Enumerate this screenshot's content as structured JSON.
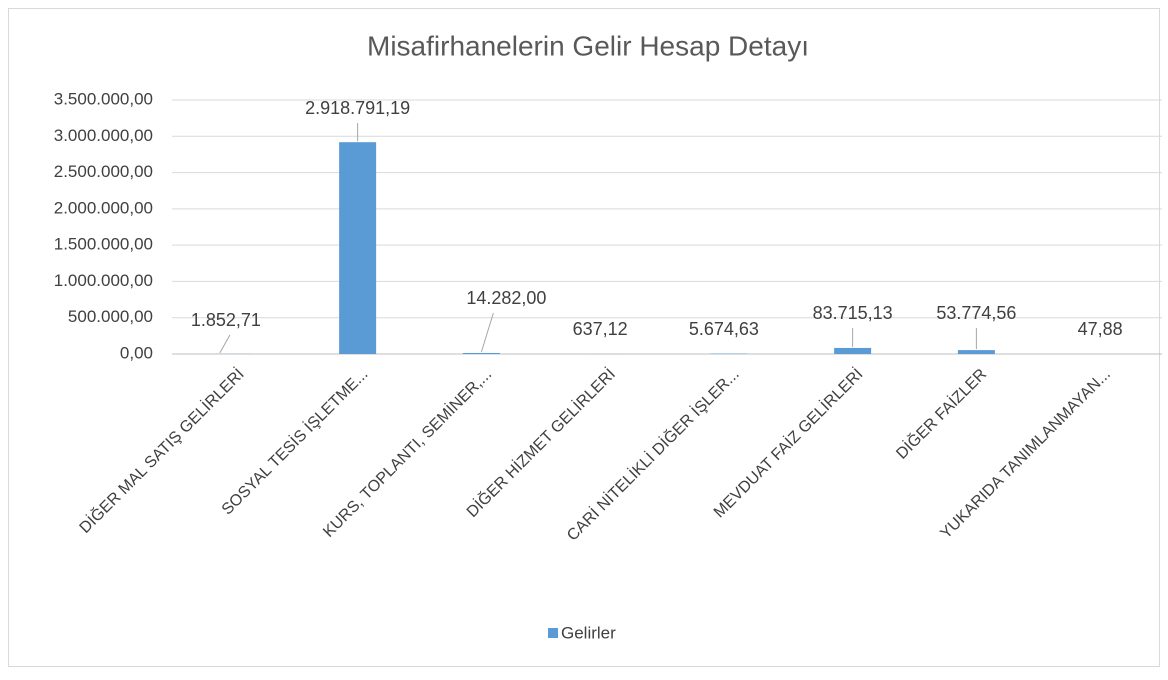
{
  "chart_data": {
    "type": "bar",
    "title": "Misafirhanelerin Gelir Hesap Detayı",
    "categories": [
      "DİĞER MAL SATIŞ GELİRLERİ",
      "SOSYAL TESİS İŞLETME...",
      "KURS, TOPLANTI, SEMİNER,...",
      "DİĞER HİZMET GELİRLERİ",
      "CARİ NİTELİKLİ DİĞER İŞLER...",
      "MEVDUAT FAİZ GELİRLERİ",
      "DİĞER FAİZLER",
      "YUKARIDA TANIMLANMAYAN..."
    ],
    "series": [
      {
        "name": "Gelirler",
        "color": "#5b9bd5",
        "values": [
          1852.71,
          2918791.19,
          14282,
          637.12,
          5674.63,
          83715.13,
          53774.56,
          47.88
        ],
        "value_labels": [
          "1.852,71",
          "2.918.791,19",
          "14.282,00",
          "637,12",
          "5.674,63",
          "83.715,13",
          "53.774,56",
          "47,88"
        ]
      }
    ],
    "ylim": [
      0,
      3500000
    ],
    "yticks": [
      {
        "value": 0,
        "label": "0,00"
      },
      {
        "value": 500000,
        "label": "500.000,00"
      },
      {
        "value": 1000000,
        "label": "1.000.000,00"
      },
      {
        "value": 1500000,
        "label": "1.500.000,00"
      },
      {
        "value": 2000000,
        "label": "2.000.000,00"
      },
      {
        "value": 2500000,
        "label": "2.500.000,00"
      },
      {
        "value": 3000000,
        "label": "3.000.000,00"
      },
      {
        "value": 3500000,
        "label": "3.500.000,00"
      }
    ],
    "grid": true,
    "legend": "bottom"
  }
}
